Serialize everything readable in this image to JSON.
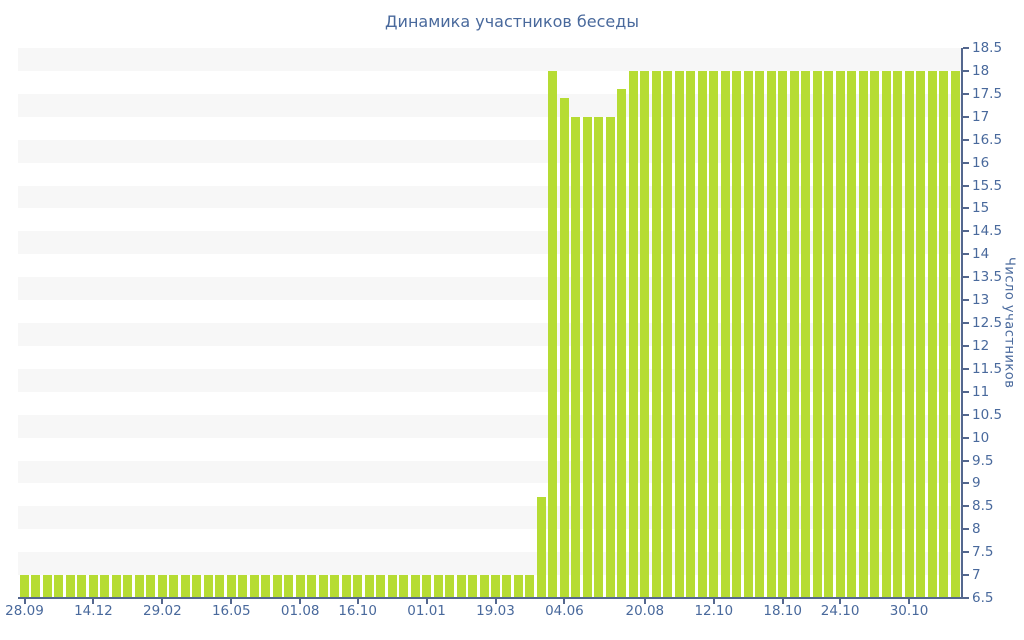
{
  "title": "Динамика участников беседы",
  "y_axis": {
    "label": "Число участников"
  },
  "colors": {
    "bar": "#b6dc33",
    "stripe": "#f7f7f7",
    "axis": "#54678e",
    "text": "#49699c",
    "bg": "#ffffff"
  },
  "chart_data": {
    "type": "bar",
    "title": "Динамика участников беседы",
    "xlabel": "",
    "ylabel": "Число участников",
    "ylim": [
      6.5,
      18.5
    ],
    "ytick_step": 0.5,
    "grid": "horizontal alternating stripes (gray/white) every 0.5 units, gray topmost",
    "legend": "none",
    "y_axis_position": "right",
    "values": [
      7,
      7,
      7,
      7,
      7,
      7,
      7,
      7,
      7,
      7,
      7,
      7,
      7,
      7,
      7,
      7,
      7,
      7,
      7,
      7,
      7,
      7,
      7,
      7,
      7,
      7,
      7,
      7,
      7,
      7,
      7,
      7,
      7,
      7,
      7,
      7,
      7,
      7,
      7,
      7,
      7,
      7,
      7,
      7,
      7,
      8.7,
      18,
      17.4,
      17,
      17,
      17,
      17,
      17.6,
      18,
      18,
      18,
      18,
      18,
      18,
      18,
      18,
      18,
      18,
      18,
      18,
      18,
      18,
      18,
      18,
      18,
      18,
      18,
      18,
      18,
      18,
      18,
      18,
      18,
      18,
      18,
      18,
      18
    ],
    "x_tick_labels": [
      "28.09",
      "14.12",
      "29.02",
      "16.05",
      "01.08",
      "16.10",
      "01.01",
      "19.03",
      "04.06",
      "20.08",
      "12.10",
      "18.10",
      "24.10",
      "30.10"
    ],
    "x_tick_bar_indices": [
      0,
      6,
      12,
      18,
      24,
      29,
      35,
      41,
      47,
      54,
      60,
      66,
      71,
      77
    ],
    "y_tick_labels": [
      "18.5",
      "18",
      "17.5",
      "17",
      "16.5",
      "16",
      "15.5",
      "15",
      "14.5",
      "14",
      "13.5",
      "13",
      "12.5",
      "12",
      "11.5",
      "11",
      "10.5",
      "10",
      "9.5",
      "9",
      "8.5",
      "8",
      "7.5",
      "7",
      "6.5"
    ]
  }
}
